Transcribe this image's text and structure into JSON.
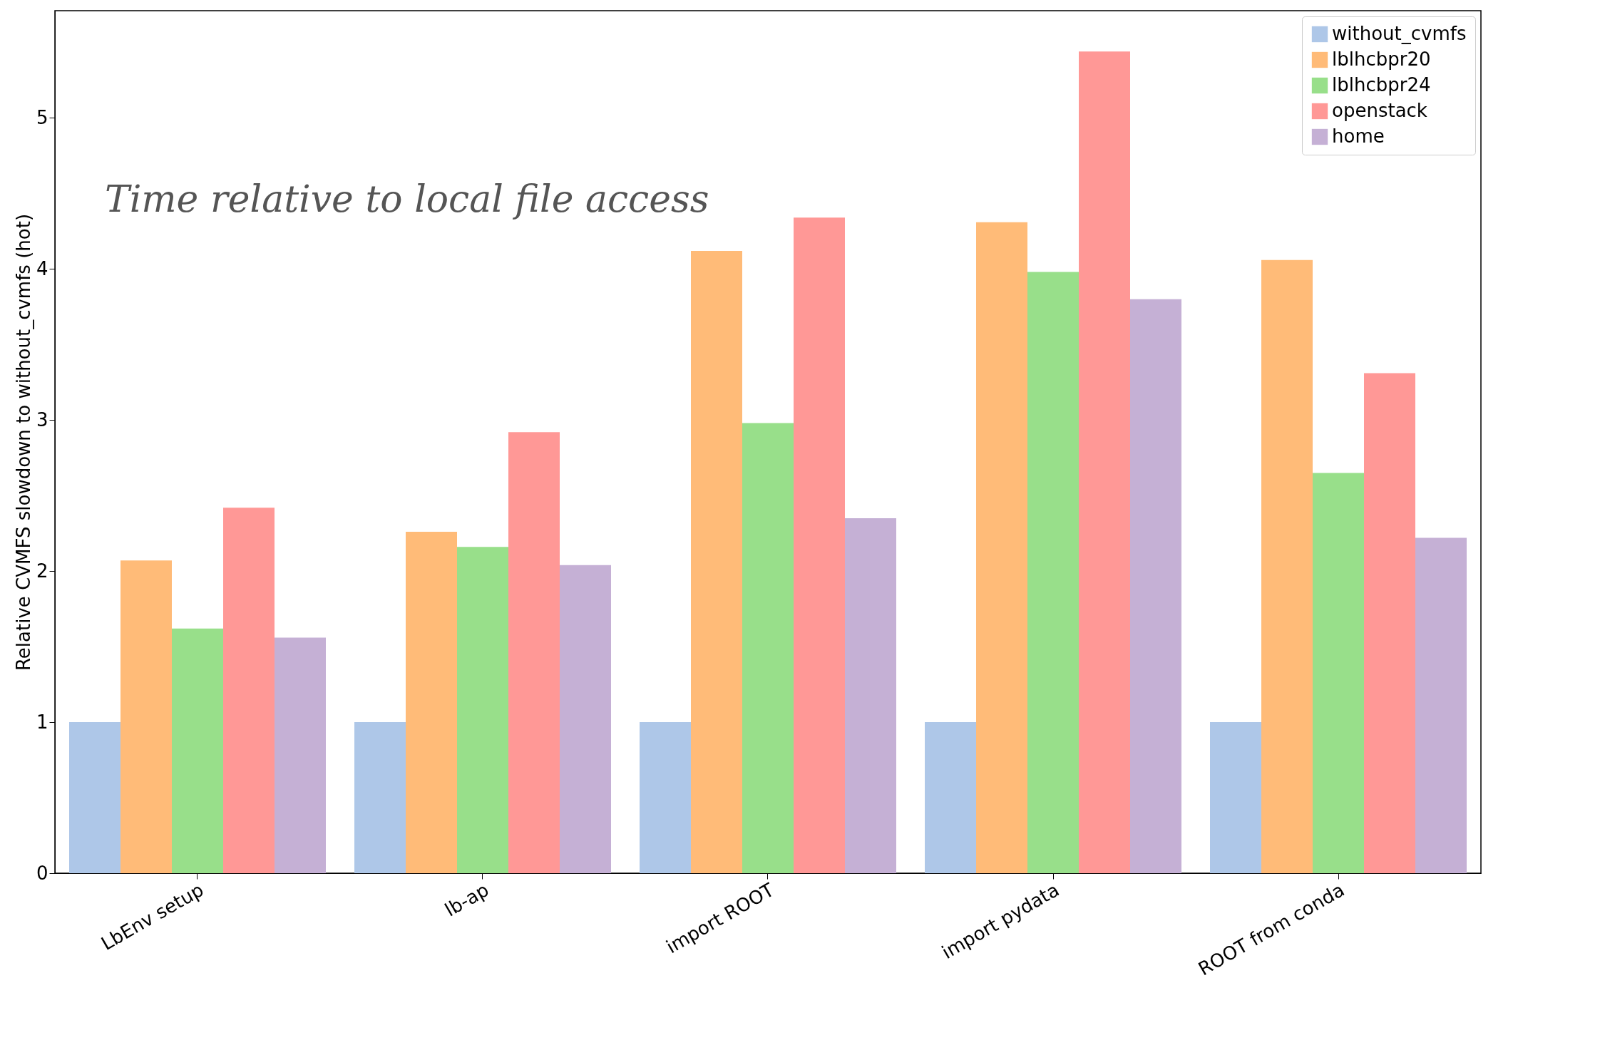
{
  "chart_data": {
    "type": "bar",
    "ylabel": "Relative CVMFS slowdown to without_cvmfs (hot)",
    "annotations": [
      "Time relative to local file access"
    ],
    "categories": [
      "LbEnv setup",
      "lb-ap",
      "import ROOT",
      "import pydata",
      "ROOT from conda"
    ],
    "series": [
      {
        "name": "without_cvmfs",
        "color": "#aec7e8",
        "values": [
          1.0,
          1.0,
          1.0,
          1.0,
          1.0
        ]
      },
      {
        "name": "lblhcbpr20",
        "color": "#ffbb78",
        "values": [
          2.07,
          2.26,
          4.12,
          4.31,
          4.06
        ]
      },
      {
        "name": "lblhcbpr24",
        "color": "#98df8a",
        "values": [
          1.62,
          2.16,
          2.98,
          3.98,
          2.65
        ]
      },
      {
        "name": "openstack",
        "color": "#ff9896",
        "values": [
          2.42,
          2.92,
          4.34,
          5.44,
          3.31
        ]
      },
      {
        "name": "home",
        "color": "#c5b0d5",
        "values": [
          1.56,
          2.04,
          2.35,
          3.8,
          2.22
        ]
      }
    ],
    "ylim": [
      0,
      5.71
    ],
    "yticks": [
      0,
      1,
      2,
      3,
      4,
      5
    ],
    "grid": false,
    "legend": "top right"
  }
}
